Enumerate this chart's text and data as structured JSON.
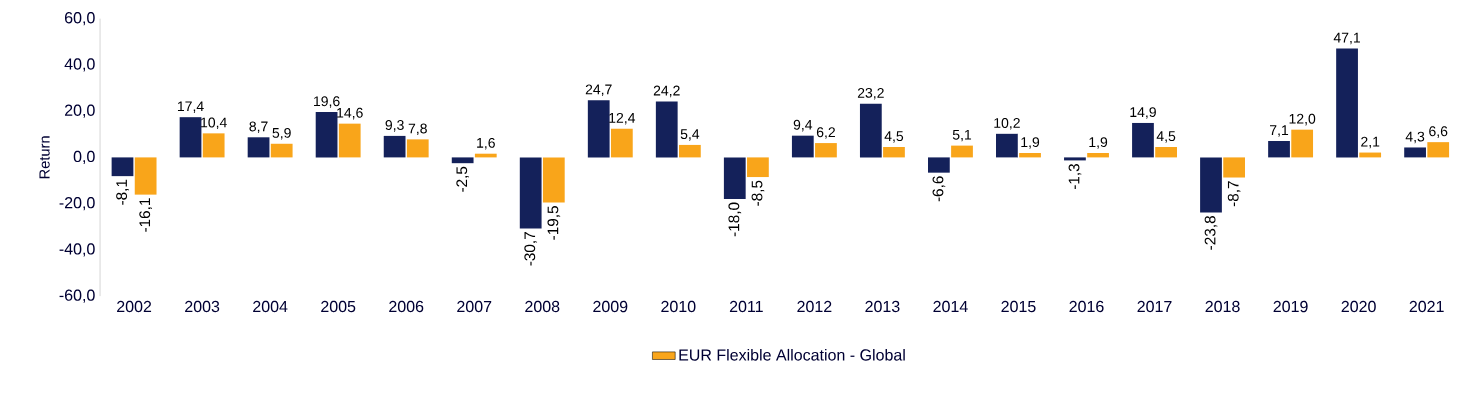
{
  "chart_data": {
    "type": "bar",
    "ylabel": "Return",
    "categories": [
      "2002",
      "2003",
      "2004",
      "2005",
      "2006",
      "2007",
      "2008",
      "2009",
      "2010",
      "2011",
      "2012",
      "2013",
      "2014",
      "2015",
      "2016",
      "2017",
      "2018",
      "2019",
      "2020",
      "2021"
    ],
    "series": [
      {
        "color": "#14215a",
        "values": [
          -8.1,
          17.4,
          8.7,
          19.6,
          9.3,
          -2.5,
          -30.7,
          24.7,
          24.2,
          -18.0,
          9.4,
          23.2,
          -6.6,
          10.2,
          -1.3,
          14.9,
          -23.8,
          7.1,
          47.1,
          4.3
        ],
        "value_labels": [
          "-8,1",
          "17,4",
          "8,7",
          "19,6",
          "9,3",
          "-2,5",
          "-30,7",
          "24,7",
          "24,2",
          "-18,0",
          "9,4",
          "23,2",
          "-6,6",
          "10,2",
          "-1,3",
          "14,9",
          "-23,8",
          "7,1",
          "47,1",
          "4,3"
        ]
      },
      {
        "name": "EUR Flexible Allocation - Global",
        "color": "#f9a51a",
        "values": [
          -16.1,
          10.4,
          5.9,
          14.6,
          7.8,
          1.6,
          -19.5,
          12.4,
          5.4,
          -8.5,
          6.2,
          4.5,
          5.1,
          1.9,
          1.9,
          4.5,
          -8.7,
          12.0,
          2.1,
          6.6
        ],
        "value_labels": [
          "-16,1",
          "10,4",
          "5,9",
          "14,6",
          "7,8",
          "1,6",
          "-19,5",
          "12,4",
          "5,4",
          "-8,5",
          "6,2",
          "4,5",
          "5,1",
          "1,9",
          "1,9",
          "4,5",
          "-8,7",
          "12,0",
          "2,1",
          "6,6"
        ]
      }
    ],
    "ylim": [
      -60,
      60
    ],
    "yticks": [
      {
        "value": -60,
        "label": "-60,0"
      },
      {
        "value": -40,
        "label": "-40,0"
      },
      {
        "value": -20,
        "label": "-20,0"
      },
      {
        "value": 0,
        "label": "0,0"
      },
      {
        "value": 20,
        "label": "20,0"
      },
      {
        "value": 40,
        "label": "40,0"
      },
      {
        "value": 60,
        "label": "60,0"
      }
    ],
    "legend": "bottom"
  }
}
